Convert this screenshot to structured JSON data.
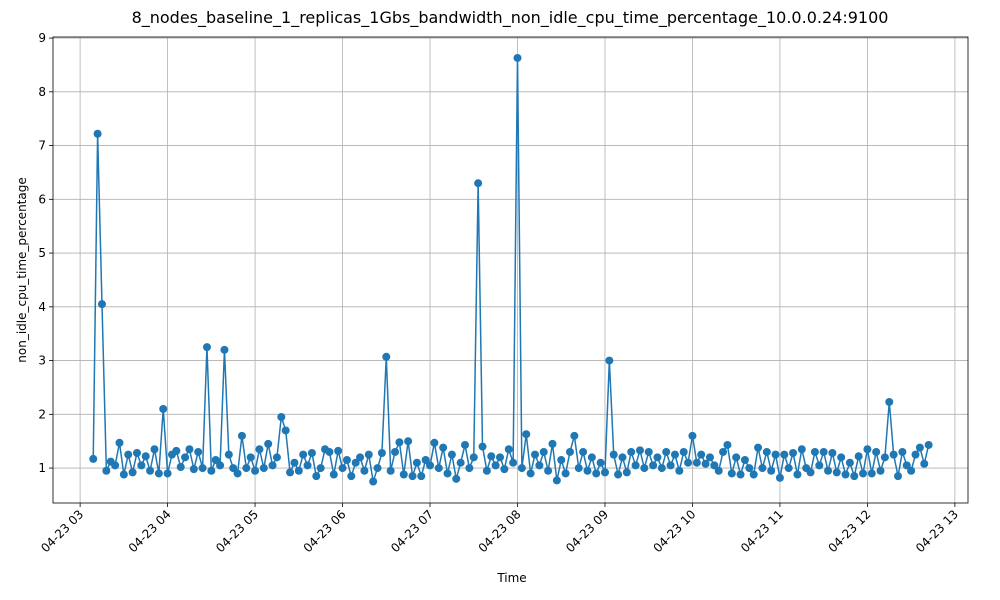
{
  "chart_data": {
    "type": "line",
    "title": "8_nodes_baseline_1_replicas_1Gbs_bandwidth_non_idle_cpu_time_percentage_10.0.0.24:9100",
    "xlabel": "Time",
    "ylabel": "non_idle_cpu_time_percentage",
    "color": "#1f77b4",
    "grid": true,
    "xlim": [
      2.69,
      13.15
    ],
    "ylim": [
      0.35,
      9.02
    ],
    "xticks": [
      {
        "value": 3,
        "label": "04-23 03"
      },
      {
        "value": 4,
        "label": "04-23 04"
      },
      {
        "value": 5,
        "label": "04-23 05"
      },
      {
        "value": 6,
        "label": "04-23 06"
      },
      {
        "value": 7,
        "label": "04-23 07"
      },
      {
        "value": 8,
        "label": "04-23 08"
      },
      {
        "value": 9,
        "label": "04-23 09"
      },
      {
        "value": 10,
        "label": "04-23 10"
      },
      {
        "value": 11,
        "label": "04-23 11"
      },
      {
        "value": 12,
        "label": "04-23 12"
      },
      {
        "value": 13,
        "label": "04-23 13"
      }
    ],
    "yticks": [
      1,
      2,
      3,
      4,
      5,
      6,
      7,
      8,
      9
    ],
    "x": [
      3.15,
      3.2,
      3.25,
      3.3,
      3.35,
      3.4,
      3.45,
      3.5,
      3.55,
      3.6,
      3.65,
      3.7,
      3.75,
      3.8,
      3.85,
      3.9,
      3.95,
      4.0,
      4.05,
      4.1,
      4.15,
      4.2,
      4.25,
      4.3,
      4.35,
      4.4,
      4.45,
      4.5,
      4.55,
      4.6,
      4.65,
      4.7,
      4.75,
      4.8,
      4.85,
      4.9,
      4.95,
      5.0,
      5.05,
      5.1,
      5.15,
      5.2,
      5.25,
      5.3,
      5.35,
      5.4,
      5.45,
      5.5,
      5.55,
      5.6,
      5.65,
      5.7,
      5.75,
      5.8,
      5.85,
      5.9,
      5.95,
      6.0,
      6.05,
      6.1,
      6.15,
      6.2,
      6.25,
      6.3,
      6.35,
      6.4,
      6.45,
      6.5,
      6.55,
      6.6,
      6.65,
      6.7,
      6.75,
      6.8,
      6.85,
      6.9,
      6.95,
      7.0,
      7.05,
      7.1,
      7.15,
      7.2,
      7.25,
      7.3,
      7.35,
      7.4,
      7.45,
      7.5,
      7.55,
      7.6,
      7.65,
      7.7,
      7.75,
      7.8,
      7.85,
      7.9,
      7.95,
      8.0,
      8.05,
      8.1,
      8.15,
      8.2,
      8.25,
      8.3,
      8.35,
      8.4,
      8.45,
      8.5,
      8.55,
      8.6,
      8.65,
      8.7,
      8.75,
      8.8,
      8.85,
      8.9,
      8.95,
      9.0,
      9.05,
      9.1,
      9.15,
      9.2,
      9.25,
      9.3,
      9.35,
      9.4,
      9.45,
      9.5,
      9.55,
      9.6,
      9.65,
      9.7,
      9.75,
      9.8,
      9.85,
      9.9,
      9.95,
      10.0,
      10.05,
      10.1,
      10.15,
      10.2,
      10.25,
      10.3,
      10.35,
      10.4,
      10.45,
      10.5,
      10.55,
      10.6,
      10.65,
      10.7,
      10.75,
      10.8,
      10.85,
      10.9,
      10.95,
      11.0,
      11.05,
      11.1,
      11.15,
      11.2,
      11.25,
      11.3,
      11.35,
      11.4,
      11.45,
      11.5,
      11.55,
      11.6,
      11.65,
      11.7,
      11.75,
      11.8,
      11.85,
      11.9,
      11.95,
      12.0,
      12.05,
      12.1,
      12.15,
      12.2,
      12.25,
      12.3,
      12.35,
      12.4,
      12.45,
      12.5,
      12.55,
      12.6,
      12.65,
      12.7
    ],
    "values": [
      1.17,
      7.22,
      4.05,
      0.95,
      1.12,
      1.05,
      1.47,
      0.88,
      1.25,
      0.92,
      1.28,
      1.05,
      1.22,
      0.95,
      1.35,
      0.9,
      2.1,
      0.9,
      1.25,
      1.32,
      1.02,
      1.2,
      1.35,
      0.98,
      1.3,
      1.0,
      3.25,
      0.95,
      1.15,
      1.05,
      3.2,
      1.25,
      1.0,
      0.9,
      1.6,
      1.0,
      1.2,
      0.95,
      1.35,
      1.0,
      1.45,
      1.05,
      1.2,
      1.95,
      1.7,
      0.92,
      1.1,
      0.95,
      1.25,
      1.05,
      1.28,
      0.85,
      1.0,
      1.35,
      1.3,
      0.88,
      1.32,
      1.0,
      1.15,
      0.85,
      1.1,
      1.2,
      0.95,
      1.25,
      0.75,
      1.0,
      1.28,
      3.07,
      0.95,
      1.3,
      1.48,
      0.88,
      1.5,
      0.85,
      1.1,
      0.85,
      1.15,
      1.05,
      1.47,
      1.0,
      1.38,
      0.9,
      1.25,
      0.8,
      1.1,
      1.43,
      1.0,
      1.2,
      6.3,
      1.4,
      0.95,
      1.22,
      1.05,
      1.2,
      0.98,
      1.35,
      1.1,
      8.63,
      1.0,
      1.63,
      0.9,
      1.25,
      1.05,
      1.3,
      0.95,
      1.45,
      0.77,
      1.15,
      0.9,
      1.3,
      1.6,
      1.0,
      1.3,
      0.95,
      1.2,
      0.9,
      1.1,
      0.92,
      3.0,
      1.25,
      0.88,
      1.2,
      0.92,
      1.3,
      1.05,
      1.33,
      1.0,
      1.3,
      1.05,
      1.2,
      1.0,
      1.3,
      1.05,
      1.25,
      0.95,
      1.3,
      1.1,
      1.6,
      1.1,
      1.25,
      1.08,
      1.2,
      1.05,
      0.95,
      1.3,
      1.43,
      0.9,
      1.2,
      0.88,
      1.15,
      1.0,
      0.88,
      1.38,
      1.0,
      1.3,
      0.95,
      1.25,
      0.82,
      1.25,
      1.0,
      1.28,
      0.88,
      1.35,
      1.0,
      0.92,
      1.3,
      1.05,
      1.3,
      0.95,
      1.28,
      0.92,
      1.2,
      0.88,
      1.1,
      0.85,
      1.22,
      0.9,
      1.35,
      0.9,
      1.3,
      0.95,
      1.2,
      2.23,
      1.25,
      0.85,
      1.3,
      1.05,
      0.95,
      1.25,
      1.38,
      1.08,
      1.43
    ]
  }
}
